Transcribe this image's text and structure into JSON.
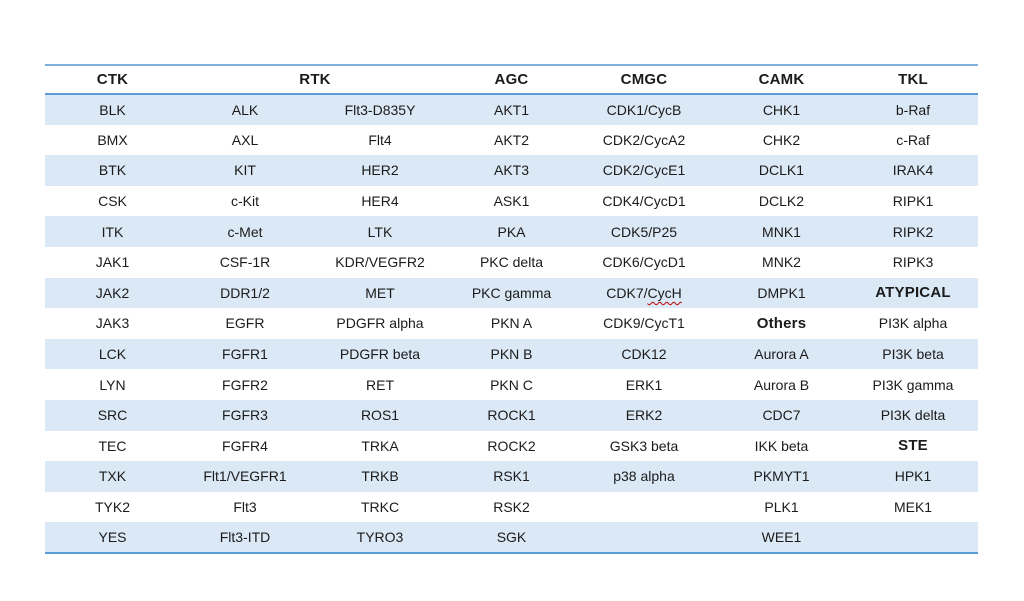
{
  "table": {
    "headers": [
      {
        "label": "CTK",
        "colspan": 1
      },
      {
        "label": "RTK",
        "colspan": 2
      },
      {
        "label": "AGC",
        "colspan": 1
      },
      {
        "label": "CMGC",
        "colspan": 1
      },
      {
        "label": "CAMK",
        "colspan": 1
      },
      {
        "label": "TKL",
        "colspan": 1
      }
    ],
    "rows": [
      [
        "BLK",
        "ALK",
        "Flt3-D835Y",
        "AKT1",
        "CDK1/CycB",
        "CHK1",
        "b-Raf"
      ],
      [
        "BMX",
        "AXL",
        "Flt4",
        "AKT2",
        "CDK2/CycA2",
        "CHK2",
        "c-Raf"
      ],
      [
        "BTK",
        "KIT",
        "HER2",
        "AKT3",
        "CDK2/CycE1",
        "DCLK1",
        "IRAK4"
      ],
      [
        "CSK",
        "c-Kit",
        "HER4",
        "ASK1",
        "CDK4/CycD1",
        "DCLK2",
        "RIPK1"
      ],
      [
        "ITK",
        "c-Met",
        "LTK",
        "PKA",
        "CDK5/P25",
        "MNK1",
        "RIPK2"
      ],
      [
        "JAK1",
        "CSF-1R",
        "KDR/VEGFR2",
        "PKC delta",
        "CDK6/CycD1",
        "MNK2",
        "RIPK3"
      ],
      [
        "JAK2",
        "DDR1/2",
        "MET",
        "PKC gamma",
        "CDK7/CycH",
        "DMPK1",
        "ATYPICAL"
      ],
      [
        "JAK3",
        "EGFR",
        "PDGFR alpha",
        "PKN A",
        "CDK9/CycT1",
        "Others",
        "PI3K alpha"
      ],
      [
        "LCK",
        "FGFR1",
        "PDGFR beta",
        "PKN B",
        "CDK12",
        "Aurora A",
        "PI3K beta"
      ],
      [
        "LYN",
        "FGFR2",
        "RET",
        "PKN C",
        "ERK1",
        "Aurora B",
        "PI3K gamma"
      ],
      [
        "SRC",
        "FGFR3",
        "ROS1",
        "ROCK1",
        "ERK2",
        "CDC7",
        "PI3K delta"
      ],
      [
        "TEC",
        "FGFR4",
        "TRKA",
        "ROCK2",
        "GSK3 beta",
        "IKK beta",
        "STE"
      ],
      [
        "TXK",
        "Flt1/VEGFR1",
        "TRKB",
        "RSK1",
        "p38 alpha",
        "PKMYT1",
        "HPK1"
      ],
      [
        "TYK2",
        "Flt3",
        "TRKC",
        "RSK2",
        "",
        "PLK1",
        "MEK1"
      ],
      [
        "YES",
        "Flt3-ITD",
        "TYRO3",
        "SGK",
        "",
        "WEE1",
        ""
      ]
    ],
    "bold_cells": [
      [
        6,
        6
      ],
      [
        7,
        5
      ],
      [
        11,
        6
      ]
    ],
    "spellcheck_cell": {
      "row": 6,
      "col": 4,
      "before": "CDK7/",
      "marked": "CycH"
    }
  },
  "colors": {
    "row_stripe": "#dbe8f5",
    "rule_line": "#5b9bd5",
    "rule_line_top": "#7fb0dc",
    "text": "#1b1b1b",
    "spellcheck_squiggle": "#c00000",
    "background": "#ffffff"
  }
}
